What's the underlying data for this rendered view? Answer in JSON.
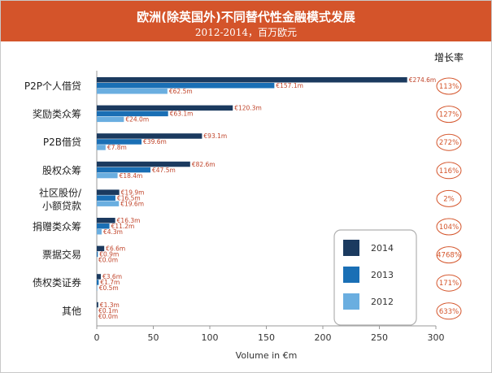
{
  "chart_data": {
    "type": "bar",
    "orientation": "horizontal",
    "title": "欧洲(除英国外)不同替代性金融模式发展",
    "subtitle": "2012-2014，百万欧元",
    "xlabel": "Volume in €m",
    "xlim": [
      0,
      300
    ],
    "xticks": [
      0,
      50,
      100,
      150,
      200,
      250,
      300
    ],
    "grid": false,
    "legend_position": "bottom-right",
    "categories": [
      "P2P个人借贷",
      "奖励类众筹",
      "P2B借贷",
      "股权众筹",
      "社区股份/小额贷款",
      "捐赠类众筹",
      "票据交易",
      "债权类证券",
      "其他"
    ],
    "category_lines": [
      [
        "P2P个人借贷"
      ],
      [
        "奖励类众筹"
      ],
      [
        "P2B借贷"
      ],
      [
        "股权众筹"
      ],
      [
        "社区股份/",
        "小额贷款"
      ],
      [
        "捐赠类众筹"
      ],
      [
        "票据交易"
      ],
      [
        "债权类证券"
      ],
      [
        "其他"
      ]
    ],
    "series": [
      {
        "name": "2014",
        "color": "#1b3a5f",
        "values": [
          274.6,
          120.3,
          93.1,
          82.6,
          19.9,
          16.3,
          6.6,
          3.6,
          1.3
        ],
        "labels": [
          "€274.6m",
          "€120.3m",
          "€93.1m",
          "€82.6m",
          "€19.9m",
          "€16.3m",
          "€6.6m",
          "€3.6m",
          "€1.3m"
        ]
      },
      {
        "name": "2013",
        "color": "#1a6fb5",
        "values": [
          157.1,
          63.1,
          39.6,
          47.5,
          16.5,
          11.2,
          0.9,
          1.7,
          0.1
        ],
        "labels": [
          "€157.1m",
          "€63.1m",
          "€39.6m",
          "€47.5m",
          "€16.5m",
          "€11.2m",
          "€0.9m",
          "€1.7m",
          "€0.1m"
        ]
      },
      {
        "name": "2012",
        "color": "#6aaee0",
        "values": [
          62.5,
          24.0,
          7.8,
          18.4,
          19.6,
          4.3,
          0.0,
          0.5,
          0.0
        ],
        "labels": [
          "€62.5m",
          "€24.0m",
          "€7.8m",
          "€18.4m",
          "€19.6m",
          "€4.3m",
          "€0.0m",
          "€0.5m",
          "€0.0m"
        ]
      }
    ],
    "growth_header": "增长率",
    "growth_rates": [
      "113%",
      "127%",
      "272%",
      "116%",
      "2%",
      "104%",
      "4768%",
      "171%",
      "633%"
    ],
    "colors": {
      "header_bg": "#d4542a",
      "accent": "#d4542a",
      "label_text": "#c0442a"
    }
  }
}
